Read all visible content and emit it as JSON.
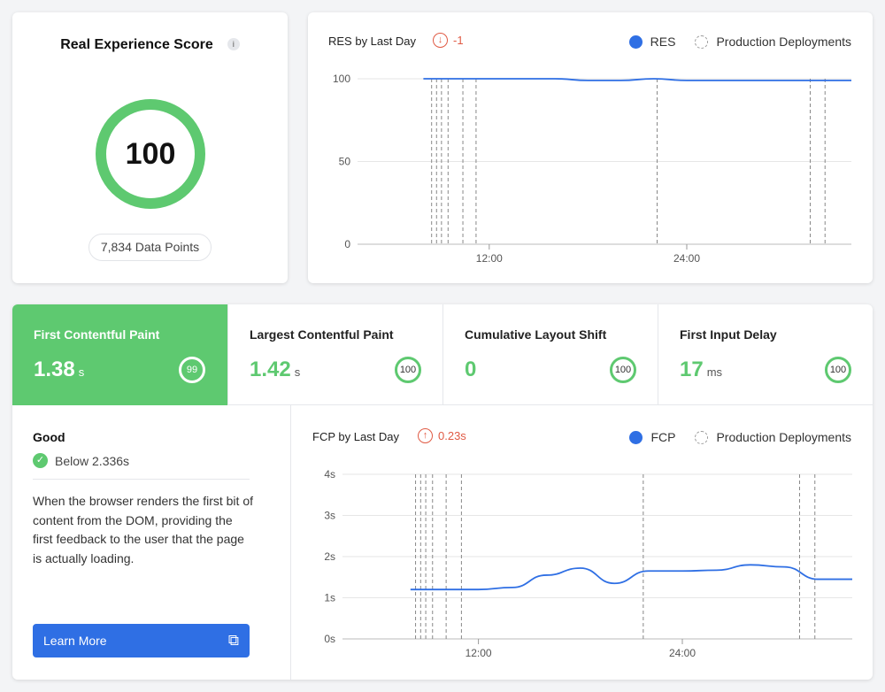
{
  "score": {
    "title": "Real Experience Score",
    "info_icon": "info-icon",
    "value": "100",
    "data_points": "7,834 Data Points"
  },
  "res_chart": {
    "title": "RES by Last Day",
    "delta": "-1",
    "delta_icon": "arrow-down-circle-icon",
    "legend": {
      "series": "RES",
      "deployments": "Production Deployments"
    }
  },
  "metrics": {
    "tabs": [
      {
        "label": "First Contentful Paint",
        "value": "1.38",
        "unit": "s",
        "score": "99"
      },
      {
        "label": "Largest Contentful Paint",
        "value": "1.42",
        "unit": "s",
        "score": "100"
      },
      {
        "label": "Cumulative Layout Shift",
        "value": "0",
        "unit": "",
        "score": "100"
      },
      {
        "label": "First Input Delay",
        "value": "17",
        "unit": "ms",
        "score": "100"
      }
    ]
  },
  "detail": {
    "status": "Good",
    "threshold": "Below 2.336s",
    "description": "When the browser renders the first bit of content from the DOM, providing the first feedback to the user that the page is actually loading.",
    "learn_more": "Learn More",
    "learn_icon": "external-link-icon"
  },
  "fcp_chart": {
    "title": "FCP by Last Day",
    "delta": "0.23s",
    "delta_icon": "arrow-up-circle-icon",
    "legend": {
      "series": "FCP",
      "deployments": "Production Deployments"
    }
  },
  "colors": {
    "good": "#5ec970",
    "accent": "#2f6fe4",
    "delta": "#e05a44"
  },
  "chart_data": [
    {
      "type": "line",
      "title": "RES by Last Day",
      "x_ticks": [
        "12:00",
        "24:00"
      ],
      "y_ticks": [
        "0",
        "50",
        "100"
      ],
      "ylim": [
        0,
        100
      ],
      "series": [
        {
          "name": "RES",
          "x": [
            8,
            10,
            12,
            14,
            16,
            18,
            20,
            22,
            24,
            26,
            28,
            30,
            32,
            34
          ],
          "values": [
            100,
            100,
            100,
            100,
            100,
            99,
            99,
            100,
            99,
            99,
            99,
            99,
            99,
            99
          ]
        }
      ],
      "deployments": [
        8.5,
        8.8,
        9.1,
        9.5,
        10.4,
        11.2,
        22.2,
        31.5,
        32.4
      ]
    },
    {
      "type": "line",
      "title": "FCP by Last Day",
      "x_ticks": [
        "12:00",
        "24:00"
      ],
      "y_ticks": [
        "0s",
        "1s",
        "2s",
        "3s",
        "4s"
      ],
      "ylim": [
        0,
        4
      ],
      "series": [
        {
          "name": "FCP",
          "x": [
            8,
            10,
            12,
            14,
            16,
            18,
            20,
            22,
            24,
            26,
            28,
            30,
            32,
            34
          ],
          "values": [
            1.2,
            1.2,
            1.2,
            1.25,
            1.55,
            1.72,
            1.35,
            1.65,
            1.65,
            1.67,
            1.8,
            1.75,
            1.45,
            1.45
          ]
        }
      ],
      "deployments": [
        8.3,
        8.6,
        8.9,
        9.3,
        10.1,
        11.0,
        21.7,
        30.9,
        31.8
      ]
    }
  ]
}
